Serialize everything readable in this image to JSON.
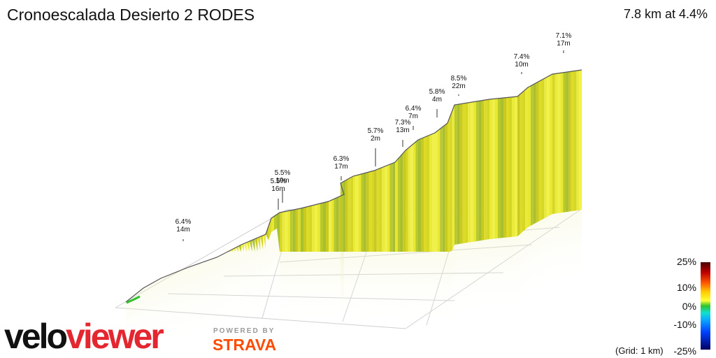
{
  "header": {
    "title": "Cronoescalada Desierto 2 RODES",
    "summary": "7.8 km at 4.4%"
  },
  "chart_data": {
    "type": "area",
    "title": "Cronoescalada Desierto 2 RODES",
    "distance_km": 7.8,
    "avg_grade_pct": 4.4,
    "grid_note": "(Grid: 1 km)",
    "grade_scale": {
      "ticks": [
        "25%",
        "10%",
        "0%",
        "-10%",
        "-25%"
      ],
      "range": [
        -25,
        25
      ]
    },
    "segments": [
      {
        "grade": "6.4%",
        "length": "14m"
      },
      {
        "grade": "5.5%",
        "length": "16m"
      },
      {
        "grade": "5.5%",
        "length": "10m"
      },
      {
        "grade": "6.3%",
        "length": "17m"
      },
      {
        "grade": "5.7%",
        "length": "2m"
      },
      {
        "grade": "7.3%",
        "length": "13m"
      },
      {
        "grade": "6.4%",
        "length": "7m"
      },
      {
        "grade": "5.8%",
        "length": "4m"
      },
      {
        "grade": "8.5%",
        "length": "22m"
      },
      {
        "grade": "7.4%",
        "length": "10m"
      },
      {
        "grade": "7.1%",
        "length": "17m"
      }
    ]
  },
  "branding": {
    "logo_part1": "velo",
    "logo_part2": "viewer",
    "powered_by": "POWERED BY",
    "strava": "STRAVA"
  }
}
